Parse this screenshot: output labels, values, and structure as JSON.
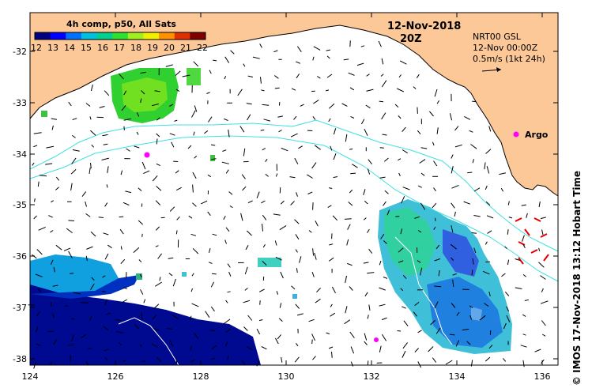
{
  "map": {
    "title_date": "12-Nov-2018",
    "title_time": "20Z",
    "colorbar": {
      "title": "4h comp, p50, All Sats",
      "ticks": [
        "12",
        "13",
        "14",
        "15",
        "16",
        "17",
        "18",
        "19",
        "20",
        "21",
        "22"
      ],
      "colors": [
        "#000080",
        "#0000ff",
        "#0070ff",
        "#00c0e0",
        "#00d090",
        "#30e030",
        "#a0f020",
        "#f0f000",
        "#ff9000",
        "#e03000",
        "#800000"
      ]
    },
    "current_info": {
      "line1": "NRT00 GSL",
      "line2": "12-Nov 00:00Z",
      "line3": "0.5m/s (1kt 24h)"
    },
    "argo_label": "Argo",
    "y_ticks": [
      "-32",
      "-33",
      "-34",
      "-35",
      "-36",
      "-37",
      "-38"
    ],
    "x_ticks": [
      "124",
      "126",
      "128",
      "130",
      "132",
      "134",
      "136"
    ],
    "credit": "© IMOS 17-Nov-2018 13:12 Hobart Time",
    "colors": {
      "land": "#fcc898",
      "contour": "#40e0e0",
      "argo": "#ff00ff"
    }
  }
}
